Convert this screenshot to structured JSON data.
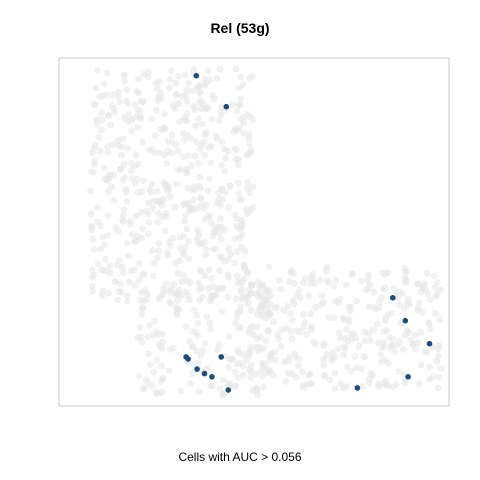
{
  "chart_data": {
    "type": "scatter",
    "title": "Rel (53g)",
    "xlabel": "Cells with AUC > 0.056",
    "ylabel": "",
    "grid": false,
    "legend": "none",
    "colors": {
      "background_cells": "#e6e6e6",
      "highlighted_cells": "#1a4e7d",
      "panel_border": "#c8c8c8"
    },
    "background_regions": [
      {
        "x": [
          0.08,
          0.5
        ],
        "y": [
          0.3,
          0.97
        ]
      },
      {
        "x": [
          0.2,
          0.55
        ],
        "y": [
          0.03,
          0.35
        ]
      },
      {
        "x": [
          0.45,
          0.98
        ],
        "y": [
          0.05,
          0.4
        ]
      }
    ],
    "series": [
      {
        "name": "AUC > 0.056",
        "points": [
          [
            0.352,
            0.949
          ],
          [
            0.429,
            0.86
          ],
          [
            0.856,
            0.311
          ],
          [
            0.888,
            0.245
          ],
          [
            0.95,
            0.179
          ],
          [
            0.326,
            0.141
          ],
          [
            0.331,
            0.135
          ],
          [
            0.416,
            0.141
          ],
          [
            0.354,
            0.106
          ],
          [
            0.373,
            0.093
          ],
          [
            0.392,
            0.084
          ],
          [
            0.434,
            0.046
          ],
          [
            0.765,
            0.052
          ],
          [
            0.895,
            0.084
          ]
        ]
      }
    ]
  }
}
